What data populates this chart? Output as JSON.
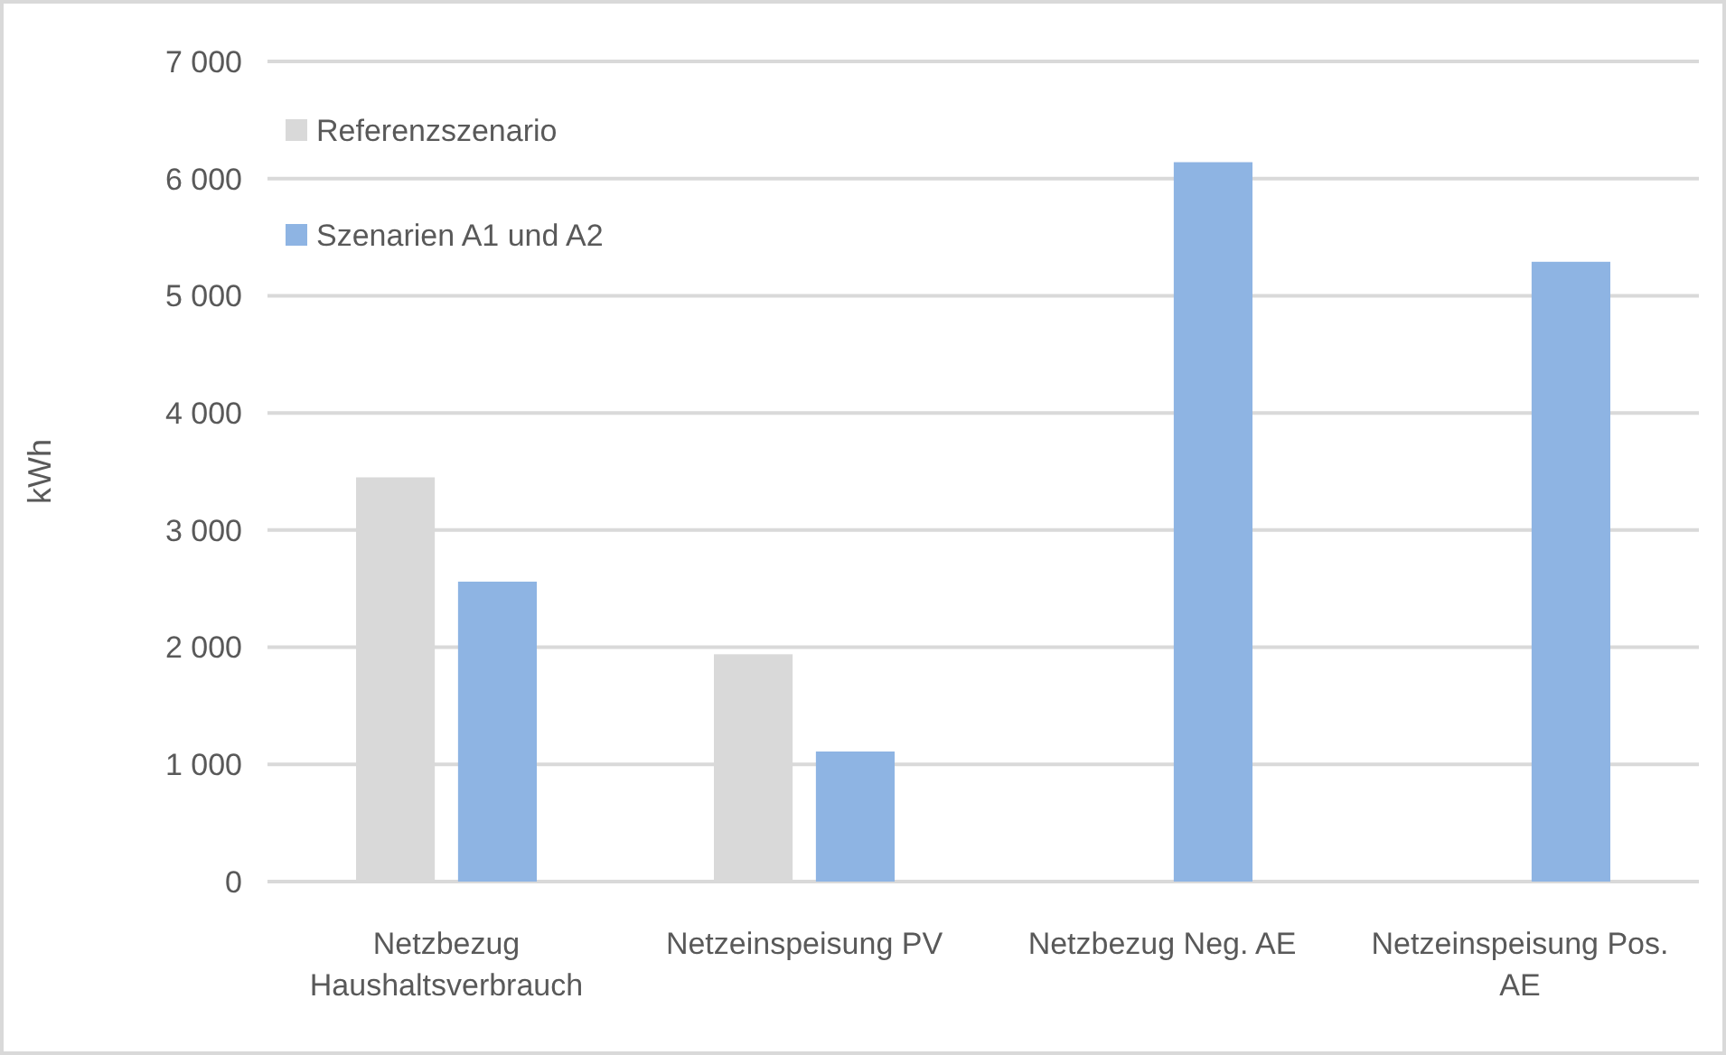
{
  "chart_data": {
    "type": "bar",
    "ylabel": "kWh",
    "categories": [
      "Netzbezug Haushaltsverbrauch",
      "Netzeinspeisung PV",
      "Netzbezug Neg. AE",
      "Netzeinspeisung Pos. AE"
    ],
    "series": [
      {
        "name": "Referenzszenario",
        "color": "#d9d9d9",
        "values": [
          3450,
          1940,
          null,
          null
        ]
      },
      {
        "name": "Szenarien A1 und A2",
        "color": "#8eb4e3",
        "values": [
          2560,
          1110,
          6140,
          5290
        ]
      }
    ],
    "ylim": [
      0,
      7000
    ],
    "yticks": [
      0,
      {
        "value": 1000,
        "label": "1 000"
      },
      {
        "value": 2000,
        "label": "2 000"
      },
      {
        "value": 3000,
        "label": "3 000"
      },
      {
        "value": 4000,
        "label": "4 000"
      },
      {
        "value": 5000,
        "label": "5 000"
      },
      {
        "value": 6000,
        "label": "6 000"
      },
      {
        "value": 7000,
        "label": "7 000"
      }
    ],
    "grid": "y",
    "legend": "top left"
  }
}
